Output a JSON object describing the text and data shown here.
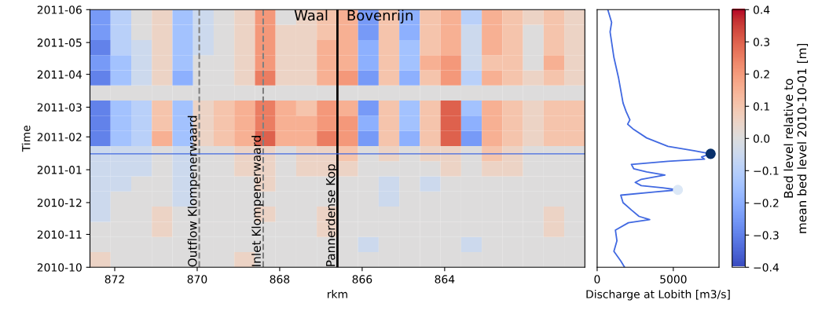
{
  "chart_data": [
    {
      "type": "heatmap",
      "xlabel": "rkm",
      "ylabel": "Time",
      "clabel": "Bed level relative to\nmean bed level 2010-10-01 [m]",
      "x": [
        872.35,
        871.85,
        871.35,
        870.85,
        870.35,
        869.85,
        869.35,
        868.85,
        868.35,
        867.85,
        867.35,
        866.85,
        866.35,
        865.85,
        865.35,
        864.85,
        864.35,
        863.85,
        863.35,
        862.85,
        862.35,
        861.85,
        861.35,
        860.85
      ],
      "cells": [
        [
          -0.25,
          -0.1,
          0,
          0.05,
          -0.15,
          -0.05,
          0,
          0.05,
          0.2,
          0,
          0.05,
          0.1,
          0.15,
          -0.25,
          0.1,
          -0.2,
          0.1,
          0.15,
          -0.1,
          0.15,
          0.1,
          0.05,
          0.1,
          0.05
        ],
        [
          -0.25,
          -0.1,
          0,
          0.05,
          -0.15,
          -0.05,
          0,
          0.05,
          0.2,
          0.05,
          0.05,
          0.1,
          0.15,
          -0.25,
          0.1,
          -0.2,
          0.1,
          0.15,
          -0.05,
          0.15,
          0.1,
          0,
          0.1,
          0.05
        ],
        [
          -0.3,
          -0.1,
          -0.05,
          0.05,
          -0.15,
          -0.05,
          0,
          0.05,
          0.2,
          0.05,
          0.05,
          0.15,
          0.15,
          -0.2,
          0.1,
          -0.15,
          0.1,
          0.15,
          -0.05,
          0.15,
          0.1,
          0,
          0.1,
          0.05
        ],
        [
          -0.25,
          -0.15,
          -0.05,
          0.05,
          -0.15,
          0,
          0,
          0.05,
          0.2,
          0.05,
          0.05,
          0.15,
          0.15,
          -0.2,
          0.1,
          -0.15,
          0.15,
          0.2,
          -0.05,
          0.1,
          0.1,
          0,
          0.15,
          0.05
        ],
        [
          -0.3,
          -0.15,
          -0.05,
          0.05,
          -0.2,
          0,
          0,
          0.05,
          0.25,
          0.05,
          0.05,
          0.15,
          0.2,
          -0.25,
          0.1,
          -0.2,
          0.1,
          0.2,
          -0.1,
          0.15,
          0.1,
          0.05,
          0.1,
          0.05
        ],
        [
          0,
          0,
          0,
          0,
          0,
          0,
          0,
          0,
          0,
          0,
          0,
          0,
          0,
          0,
          0,
          0,
          0,
          0,
          0,
          0,
          0,
          0,
          0,
          0
        ],
        [
          -0.3,
          -0.15,
          -0.1,
          0.1,
          -0.15,
          0.05,
          0.1,
          0.15,
          0.25,
          0.15,
          0.1,
          0.2,
          0.15,
          -0.25,
          0.1,
          -0.15,
          0.1,
          0.3,
          -0.15,
          0.15,
          0.1,
          0.05,
          0.1,
          0.1
        ],
        [
          -0.3,
          -0.15,
          -0.1,
          0.1,
          -0.15,
          0.05,
          0.1,
          0.15,
          0.25,
          0.15,
          0.15,
          0.2,
          0.2,
          -0.2,
          0.1,
          -0.15,
          0.1,
          0.3,
          -0.2,
          0.15,
          0.1,
          0.05,
          0.1,
          0.1
        ],
        [
          -0.3,
          -0.15,
          -0.1,
          0.15,
          -0.15,
          0.05,
          0.1,
          0.15,
          0.3,
          0.15,
          0.15,
          0.25,
          0.2,
          -0.25,
          0.1,
          -0.2,
          0.1,
          0.3,
          -0.25,
          0.15,
          0.1,
          0.05,
          0.1,
          0.1
        ],
        [
          -0.05,
          -0.05,
          -0.05,
          0,
          -0.05,
          0,
          0,
          0.05,
          0.05,
          0,
          0.05,
          0.05,
          0.1,
          0,
          0.05,
          0,
          0.05,
          0.05,
          0,
          0.1,
          0.05,
          0,
          0,
          0
        ],
        [
          -0.05,
          -0.05,
          -0.05,
          0,
          -0.05,
          0,
          0,
          0.05,
          0.05,
          0,
          0.05,
          0.05,
          0.05,
          0,
          0,
          0,
          0,
          0.05,
          0,
          0.05,
          0.05,
          0,
          0,
          0
        ],
        [
          -0.05,
          -0.05,
          0,
          0,
          -0.05,
          0,
          0,
          0,
          0.05,
          0,
          0,
          0,
          0,
          0,
          -0.05,
          0,
          -0.05,
          0,
          0,
          0,
          0,
          0,
          0,
          0
        ],
        [
          -0.05,
          0,
          0,
          0,
          -0.05,
          0,
          0,
          0,
          0,
          0,
          0,
          0,
          0,
          0,
          -0.05,
          0,
          0,
          0,
          0,
          0,
          0,
          0,
          0,
          0
        ],
        [
          -0.05,
          0,
          0,
          0.05,
          0,
          0,
          0,
          0,
          0.05,
          0,
          0,
          0.05,
          0,
          0,
          0,
          0,
          0,
          0,
          0,
          0,
          0,
          0,
          0.05,
          0
        ],
        [
          0,
          0,
          0,
          0.05,
          0,
          0,
          0,
          0,
          0,
          0,
          0,
          0.05,
          0,
          0,
          0,
          0,
          0,
          0,
          0,
          0,
          0,
          0,
          0.05,
          0
        ],
        [
          0,
          0,
          0,
          0,
          0,
          0,
          0,
          0,
          0,
          0,
          0,
          0,
          0,
          -0.05,
          0,
          0,
          0,
          0,
          -0.05,
          0,
          0,
          0,
          0,
          0
        ],
        [
          0.05,
          0,
          0,
          0,
          0,
          0,
          0,
          0.05,
          0,
          0,
          0,
          0,
          0,
          0,
          0,
          0,
          0,
          0,
          0,
          0,
          0,
          0,
          0,
          0
        ]
      ],
      "clim": [
        -0.4,
        0.4
      ],
      "cticks": [
        {
          "value": -0.4,
          "label": "−0.4"
        },
        {
          "value": -0.3,
          "label": "−0.3"
        },
        {
          "value": -0.2,
          "label": "−0.2"
        },
        {
          "value": -0.1,
          "label": "−0.1"
        },
        {
          "value": 0,
          "label": "0.0"
        },
        {
          "value": 0.1,
          "label": "0.1"
        },
        {
          "value": 0.2,
          "label": "0.2"
        },
        {
          "value": 0.3,
          "label": "0.3"
        },
        {
          "value": 0.4,
          "label": "0.4"
        }
      ],
      "xlim": [
        872.6,
        860.6
      ],
      "xticks": [
        872,
        870,
        868,
        866,
        864
      ],
      "ylim": [
        "2010-10",
        "2011-06"
      ],
      "yticks": [
        "2010-10",
        "2010-11",
        "2010-12",
        "2011-01",
        "2011-02",
        "2011-03",
        "2011-04",
        "2011-05",
        "2011-06"
      ],
      "ref_lines": [
        {
          "axis": "x",
          "value": 869.95,
          "label": "Outflow Klompenerwaard",
          "color": "#808080",
          "line_style": "dashed"
        },
        {
          "axis": "x",
          "value": 868.4,
          "label": "Inlet Klompenerwaard",
          "color": "#808080",
          "line_style": "dashed"
        },
        {
          "axis": "x",
          "value": 866.6,
          "label": "Pannerdense Kop",
          "color": "#000000",
          "line_style": "solid"
        },
        {
          "axis": "y",
          "value": "2011-01-16",
          "label": null,
          "color": "#4169e1",
          "line_style": "solid"
        }
      ],
      "annotations": [
        "Waal",
        "Bovenrijn"
      ]
    },
    {
      "type": "line",
      "orientation": "horizontal",
      "xlabel": "Discharge at Lobith [m3/s]",
      "tick_labels": "x",
      "xlim": [
        0,
        8000
      ],
      "xticks": [
        0,
        5000
      ],
      "ylim": [
        "2010-10",
        "2011-06"
      ],
      "grid": false,
      "series": [
        {
          "type": "line",
          "color": "#4169e1",
          "x": [
            "2010-10-01",
            "2010-10-07",
            "2010-10-16",
            "2010-10-26",
            "2010-11-05",
            "2010-11-12",
            "2010-11-15",
            "2010-11-18",
            "2010-11-24",
            "2010-12-01",
            "2010-12-08",
            "2010-12-11",
            "2010-12-13",
            "2010-12-15",
            "2010-12-17",
            "2010-12-20",
            "2010-12-23",
            "2010-12-27",
            "2010-12-30",
            "2011-01-02",
            "2011-01-06",
            "2011-01-09",
            "2011-01-11",
            "2011-01-13",
            "2011-01-16",
            "2011-01-19",
            "2011-01-23",
            "2011-01-31",
            "2011-02-08",
            "2011-02-13",
            "2011-02-17",
            "2011-02-25",
            "2011-03-05",
            "2011-03-17",
            "2011-03-29",
            "2011-04-17",
            "2011-05-11",
            "2011-05-20",
            "2011-06-01"
          ],
          "values": [
            1800,
            1550,
            1100,
            1300,
            1200,
            2050,
            3450,
            2750,
            2250,
            1700,
            1550,
            3800,
            5300,
            4300,
            2900,
            2500,
            2900,
            4450,
            3250,
            2400,
            2250,
            4650,
            7050,
            6850,
            7450,
            6350,
            4650,
            3250,
            2400,
            2000,
            2150,
            1900,
            1700,
            1550,
            1400,
            1100,
            850,
            950,
            700
          ]
        },
        {
          "type": "scatter",
          "color": "#08306b",
          "x": [
            "2011-01-16"
          ],
          "values": [
            7450
          ]
        },
        {
          "type": "scatter",
          "color": "#dce8f6",
          "x": [
            "2010-12-13"
          ],
          "values": [
            5300
          ]
        }
      ]
    }
  ]
}
